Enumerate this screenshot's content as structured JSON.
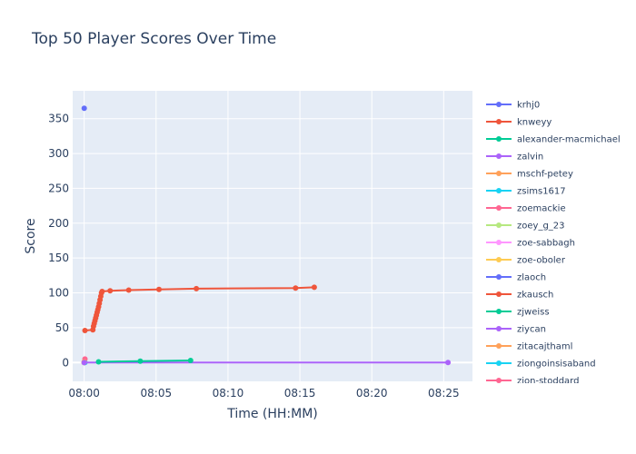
{
  "chart_data": {
    "type": "line",
    "title": "Top 50 Player Scores Over Time",
    "xlabel": "Time (HH:MM)",
    "ylabel": "Score",
    "x_ticks": [
      "08:00",
      "08:05",
      "08:10",
      "08:15",
      "08:20",
      "08:25"
    ],
    "y_ticks": [
      0,
      50,
      100,
      150,
      200,
      250,
      300,
      350
    ],
    "xlim_minutes": [
      -0.8,
      27.0
    ],
    "ylim": [
      -27,
      390
    ],
    "grid": true,
    "legend_position": "right",
    "series": [
      {
        "name": "krhj0",
        "color": "#636efa",
        "points": [
          [
            0.0,
            365
          ]
        ]
      },
      {
        "name": "knweyy",
        "color": "#EF553B",
        "points": [
          [
            0.05,
            46
          ],
          [
            0.6,
            47
          ],
          [
            0.65,
            52
          ],
          [
            0.7,
            56
          ],
          [
            0.75,
            60
          ],
          [
            0.8,
            64
          ],
          [
            0.85,
            68
          ],
          [
            0.9,
            72
          ],
          [
            0.95,
            76
          ],
          [
            1.0,
            80
          ],
          [
            1.05,
            85
          ],
          [
            1.1,
            90
          ],
          [
            1.15,
            95
          ],
          [
            1.2,
            100
          ],
          [
            1.25,
            102
          ],
          [
            1.8,
            103
          ],
          [
            3.1,
            104
          ],
          [
            5.2,
            105
          ],
          [
            7.8,
            106
          ],
          [
            14.7,
            107
          ],
          [
            16.0,
            108
          ]
        ]
      },
      {
        "name": "alexander-macmichael",
        "color": "#00cc96",
        "points": [
          [
            1.0,
            1
          ],
          [
            3.9,
            2
          ],
          [
            7.4,
            3
          ]
        ]
      },
      {
        "name": "zalvin",
        "color": "#ab63fa",
        "points": [
          [
            0.0,
            0
          ],
          [
            25.3,
            0
          ]
        ]
      },
      {
        "name": "mschf-petey",
        "color": "#FFA15A",
        "points": [
          [
            0.0,
            1
          ]
        ]
      },
      {
        "name": "zsims1617",
        "color": "#19d3f3",
        "points": [
          [
            0.05,
            0
          ]
        ]
      },
      {
        "name": "zoemackie",
        "color": "#FF6692",
        "points": [
          [
            0.05,
            5
          ]
        ]
      },
      {
        "name": "zoey_g_23",
        "color": "#B6E880",
        "points": [
          [
            0.05,
            0
          ]
        ]
      },
      {
        "name": "zoe-sabbagh",
        "color": "#FF97FF",
        "points": [
          [
            0.0,
            0
          ]
        ]
      },
      {
        "name": "zoe-oboler",
        "color": "#FECB52",
        "points": [
          [
            0.0,
            0
          ]
        ]
      },
      {
        "name": "zlaoch",
        "color": "#636efa",
        "points": [
          [
            0.0,
            0
          ]
        ]
      },
      {
        "name": "zkausch",
        "color": "#EF553B",
        "points": [
          [
            0.0,
            0
          ]
        ]
      },
      {
        "name": "zjweiss",
        "color": "#00cc96",
        "points": [
          [
            0.0,
            0
          ]
        ]
      },
      {
        "name": "ziycan",
        "color": "#ab63fa",
        "points": [
          [
            0.0,
            0
          ]
        ]
      },
      {
        "name": "zitacajthaml",
        "color": "#FFA15A",
        "points": [
          [
            0.0,
            0
          ]
        ]
      },
      {
        "name": "ziongoinsisaband",
        "color": "#19d3f3",
        "points": [
          [
            0.0,
            0
          ]
        ]
      },
      {
        "name": "zion-stoddard",
        "color": "#FF6692",
        "points": [
          [
            0.0,
            0
          ]
        ]
      }
    ]
  }
}
